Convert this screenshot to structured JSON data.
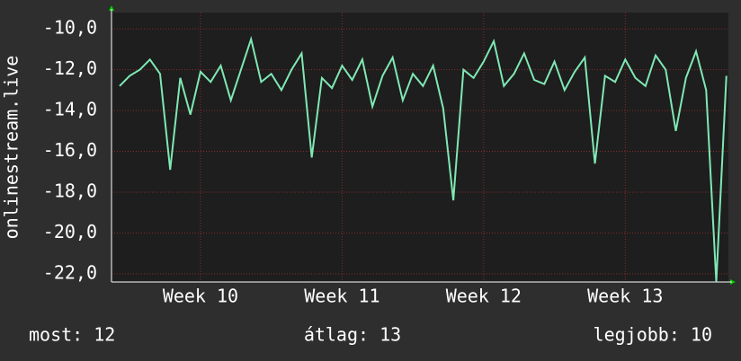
{
  "chart_data": {
    "type": "line",
    "y_label": "onlinestream.live",
    "x": [
      3,
      3.5,
      4,
      4.5,
      5,
      5.5,
      6,
      6.5,
      7,
      7.5,
      8,
      8.5,
      9,
      9.5,
      10,
      10.5,
      11,
      11.5,
      12,
      12.5,
      13,
      13.5,
      14,
      14.5,
      15,
      15.5,
      16,
      16.5,
      17,
      17.5,
      18,
      18.5,
      19,
      19.5,
      20,
      20.5,
      21,
      21.5,
      22,
      22.5,
      23,
      23.5,
      24,
      24.5,
      25,
      25.5,
      26,
      26.5,
      27,
      27.5,
      28,
      28.5,
      29,
      29.5,
      30,
      30.5,
      31,
      31.5,
      32,
      32.5,
      33
    ],
    "series": [
      {
        "name": "onlinestream.live",
        "color": "#7fe8b4",
        "values": [
          -12.8,
          -12.3,
          -12.0,
          -11.5,
          -12.2,
          -16.9,
          -12.4,
          -14.2,
          -12.1,
          -12.6,
          -11.8,
          -13.5,
          -12.0,
          -10.5,
          -12.6,
          -12.2,
          -13.0,
          -12.0,
          -11.2,
          -16.3,
          -12.4,
          -12.9,
          -11.8,
          -12.5,
          -11.5,
          -13.8,
          -12.3,
          -11.4,
          -13.5,
          -12.2,
          -12.8,
          -11.8,
          -13.9,
          -18.4,
          -12.0,
          -12.4,
          -11.6,
          -10.6,
          -12.8,
          -12.2,
          -11.2,
          -12.5,
          -12.7,
          -11.6,
          -13.0,
          -12.1,
          -11.4,
          -16.6,
          -12.3,
          -12.6,
          -11.5,
          -12.4,
          -12.8,
          -11.3,
          -12.0,
          -15.0,
          -12.4,
          -11.1,
          -13.0,
          -22.4,
          -12.3
        ]
      }
    ],
    "xlim": [
      2.6,
      33.1
    ],
    "xticks": [
      {
        "value": 7,
        "label": "Week 10"
      },
      {
        "value": 14,
        "label": "Week 11"
      },
      {
        "value": 21,
        "label": "Week 12"
      },
      {
        "value": 28,
        "label": "Week 13"
      }
    ],
    "ylim": [
      -22.4,
      -9.2
    ],
    "yticks": [
      {
        "value": -10,
        "label": "-10,0"
      },
      {
        "value": -12,
        "label": "-12,0"
      },
      {
        "value": -14,
        "label": "-14,0"
      },
      {
        "value": -16,
        "label": "-16,0"
      },
      {
        "value": -18,
        "label": "-18,0"
      },
      {
        "value": -20,
        "label": "-20,0"
      },
      {
        "value": -22,
        "label": "-22,0"
      }
    ],
    "grid": true,
    "footer": [
      "most: 12",
      "átlag: 13",
      "legjobb: 10"
    ]
  }
}
